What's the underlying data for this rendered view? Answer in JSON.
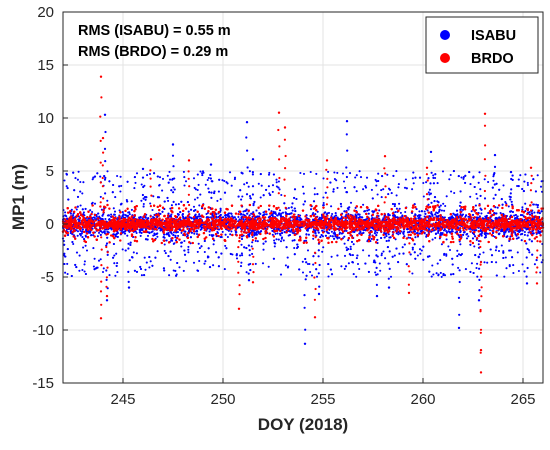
{
  "chart_data": {
    "type": "scatter",
    "xlabel": "DOY (2018)",
    "ylabel": "MP1 (m)",
    "xlim": [
      242,
      266
    ],
    "ylim": [
      -15,
      20
    ],
    "xticks": [
      245,
      250,
      255,
      260,
      265
    ],
    "yticks": [
      -15,
      -10,
      -5,
      0,
      5,
      10,
      15,
      20
    ],
    "grid": true,
    "legend_position": "top-right",
    "annotations": [
      "RMS (ISABU) = 0.55 m",
      "RMS (BRDO) = 0.29 m"
    ],
    "series": [
      {
        "name": "ISABU",
        "color": "#0000ff",
        "rms": 0.55,
        "envelope": [
          -5,
          5
        ],
        "outliers": [
          [
            244.1,
            10.3
          ],
          [
            244.2,
            -7.2
          ],
          [
            246.0,
            5.2
          ],
          [
            247.5,
            7.5
          ],
          [
            249.4,
            5.6
          ],
          [
            251.2,
            9.6
          ],
          [
            251.5,
            6.1
          ],
          [
            251.3,
            -5.3
          ],
          [
            254.1,
            -11.3
          ],
          [
            254.8,
            -6.6
          ],
          [
            256.2,
            9.7
          ],
          [
            258.3,
            -6.0
          ],
          [
            260.4,
            6.8
          ],
          [
            261.8,
            -9.8
          ],
          [
            262.8,
            -7.2
          ],
          [
            263.6,
            6.5
          ],
          [
            264.4,
            4.9
          ],
          [
            265.2,
            -5.6
          ],
          [
            245.3,
            -6.0
          ],
          [
            257.7,
            -6.8
          ]
        ]
      },
      {
        "name": "BRDO",
        "color": "#ff0000",
        "rms": 0.29,
        "envelope": [
          -1.8,
          1.8
        ],
        "outliers": [
          [
            243.9,
            13.9
          ],
          [
            244.0,
            8.1
          ],
          [
            243.9,
            -8.9
          ],
          [
            244.2,
            -6.8
          ],
          [
            246.4,
            6.1
          ],
          [
            248.3,
            6.0
          ],
          [
            250.8,
            -8.0
          ],
          [
            252.8,
            10.5
          ],
          [
            253.1,
            9.1
          ],
          [
            254.6,
            -8.8
          ],
          [
            255.2,
            6.0
          ],
          [
            258.1,
            6.4
          ],
          [
            260.2,
            5.3
          ],
          [
            262.9,
            -14.0
          ],
          [
            263.1,
            10.4
          ],
          [
            262.9,
            -11.9
          ],
          [
            265.4,
            5.3
          ],
          [
            265.7,
            -5.6
          ],
          [
            251.5,
            -5.5
          ],
          [
            259.3,
            -6.5
          ]
        ]
      }
    ]
  }
}
